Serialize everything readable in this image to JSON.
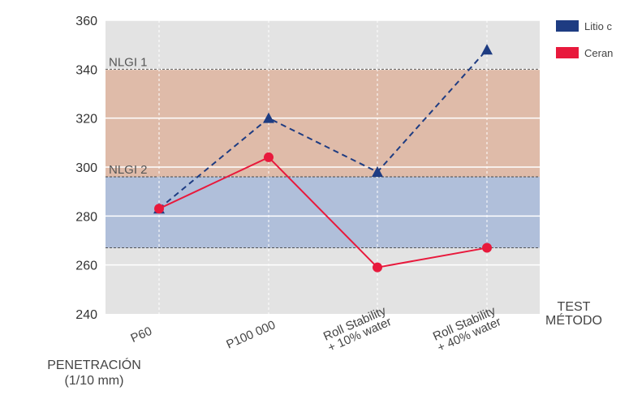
{
  "chart_data": {
    "type": "line",
    "categories": [
      "P60",
      "P100 000",
      "Roll Stability\n+ 10% water",
      "Roll Stability\n+ 40% water"
    ],
    "series": [
      {
        "name": "Litio c",
        "color": "#1e3c82",
        "marker": "triangle",
        "dash": true,
        "values": [
          283,
          320,
          298,
          348
        ]
      },
      {
        "name": "Ceran",
        "color": "#e8193c",
        "marker": "circle",
        "dash": false,
        "values": [
          283,
          304,
          259,
          267
        ]
      }
    ],
    "ylim": [
      240,
      360
    ],
    "yticks": [
      240,
      260,
      280,
      300,
      320,
      340,
      360
    ],
    "bands": [
      {
        "label": "NLGI 1",
        "from": 296,
        "to": 340,
        "color": "#dfbba9"
      },
      {
        "label": "NLGI 2",
        "from": 267,
        "to": 296,
        "color": "#b0bfda"
      }
    ],
    "xlabel": "TEST\nMÉTODO",
    "ylabel": "PENETRACIÓN\n(1/10 mm)",
    "grid": true,
    "legend": "top-right"
  }
}
